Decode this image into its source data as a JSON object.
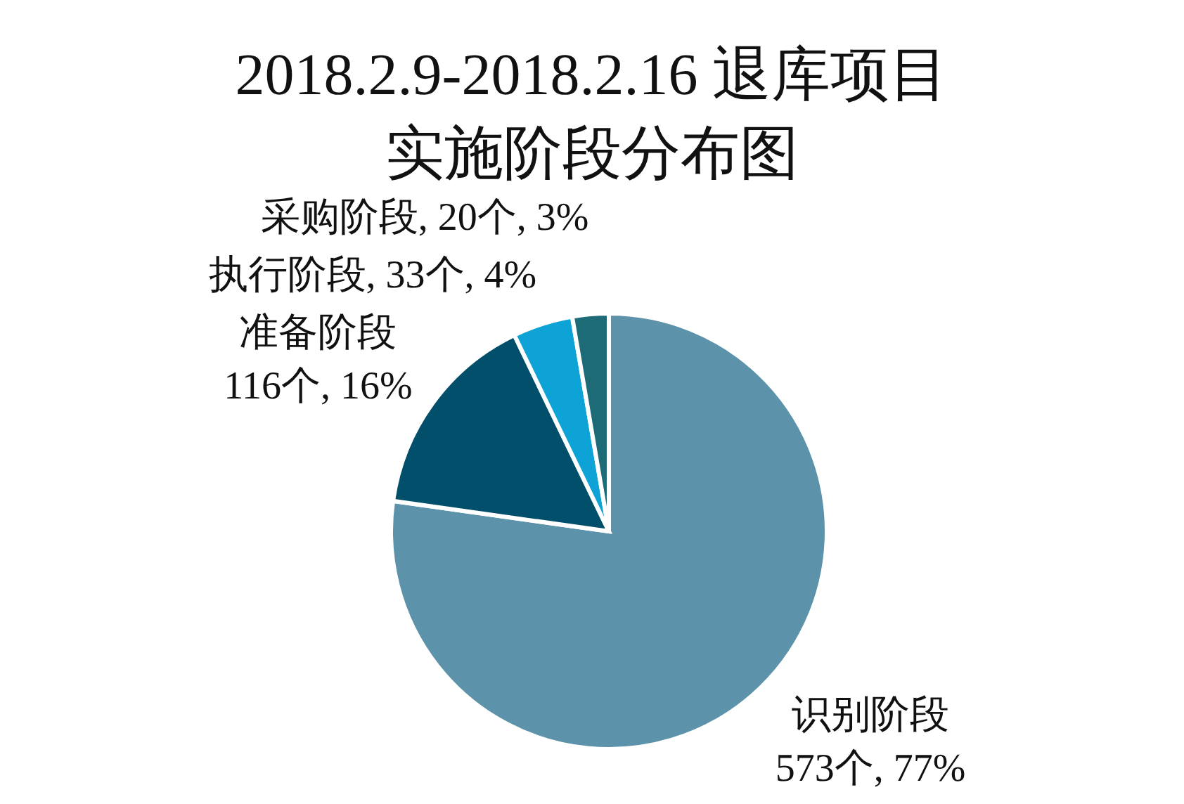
{
  "chart_data": {
    "type": "pie",
    "title": "2018.2.9-2018.2.16 退库项目实施阶段分布图",
    "categories": [
      "识别阶段",
      "准备阶段",
      "执行阶段",
      "采购阶段"
    ],
    "values": [
      573,
      116,
      33,
      20
    ],
    "colors": [
      "#5d93aa",
      "#024f6b",
      "#0ea3d6",
      "#1e6b78"
    ],
    "value_labels": [
      "573个, 77%",
      "116个, 16%",
      "33个, 4%",
      "20个, 3%"
    ]
  }
}
